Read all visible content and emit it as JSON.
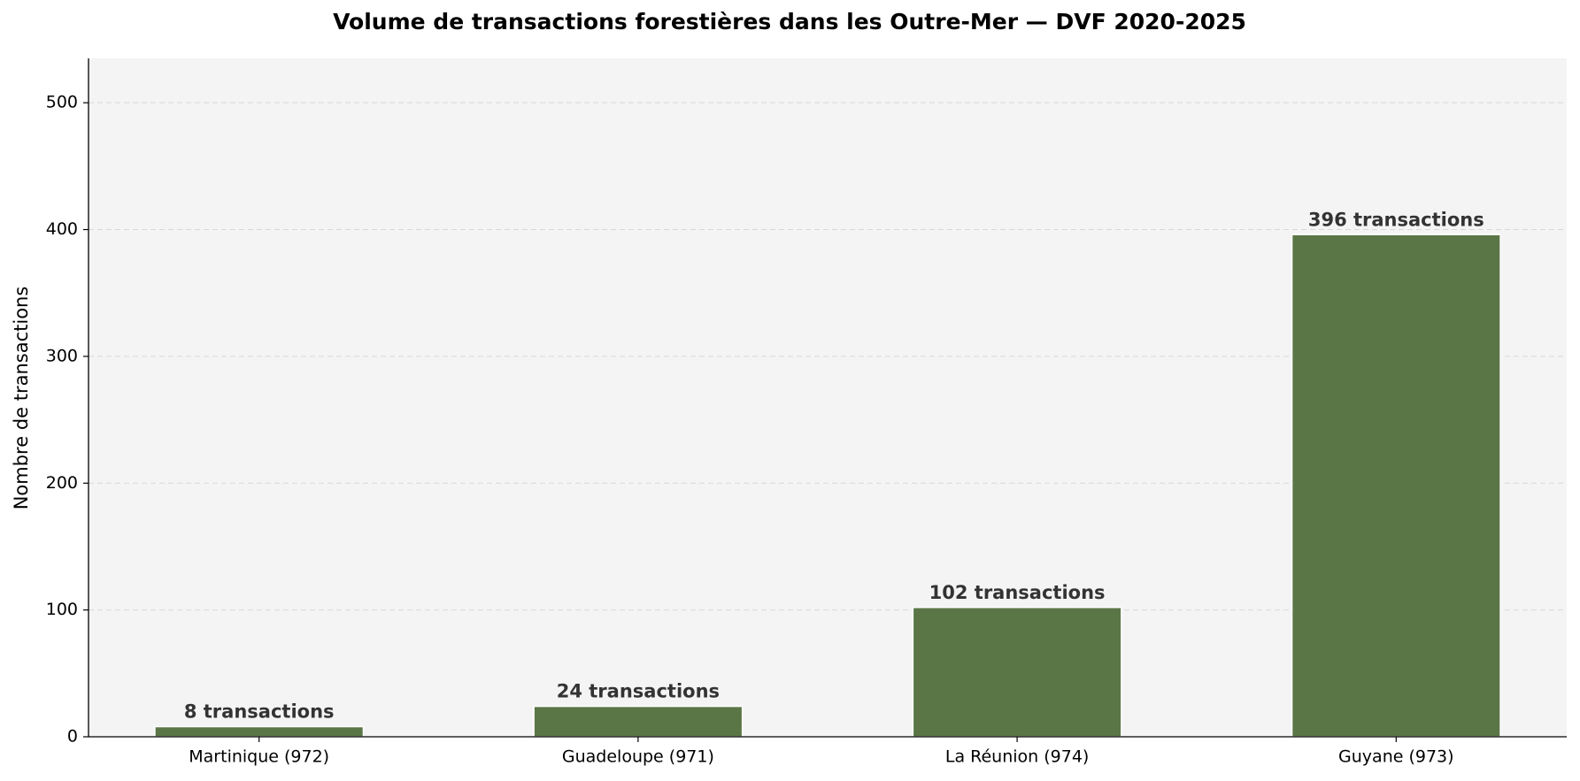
{
  "chart_data": {
    "type": "bar",
    "title": "Volume de transactions forestières dans les Outre-Mer — DVF 2020-2025",
    "y_label": "Nombre de transactions",
    "categories": [
      "Martinique (972)",
      "Guadeloupe (971)",
      "La Réunion (974)",
      "Guyane (973)"
    ],
    "values": [
      8,
      24,
      102,
      396
    ],
    "value_labels": [
      "8 transactions",
      "24 transactions",
      "102 transactions",
      "396 transactions"
    ],
    "color": "#5b7646",
    "ylim": [
      0,
      535
    ],
    "yticks": [
      0,
      100,
      200,
      300,
      400,
      500
    ],
    "grid": true
  }
}
